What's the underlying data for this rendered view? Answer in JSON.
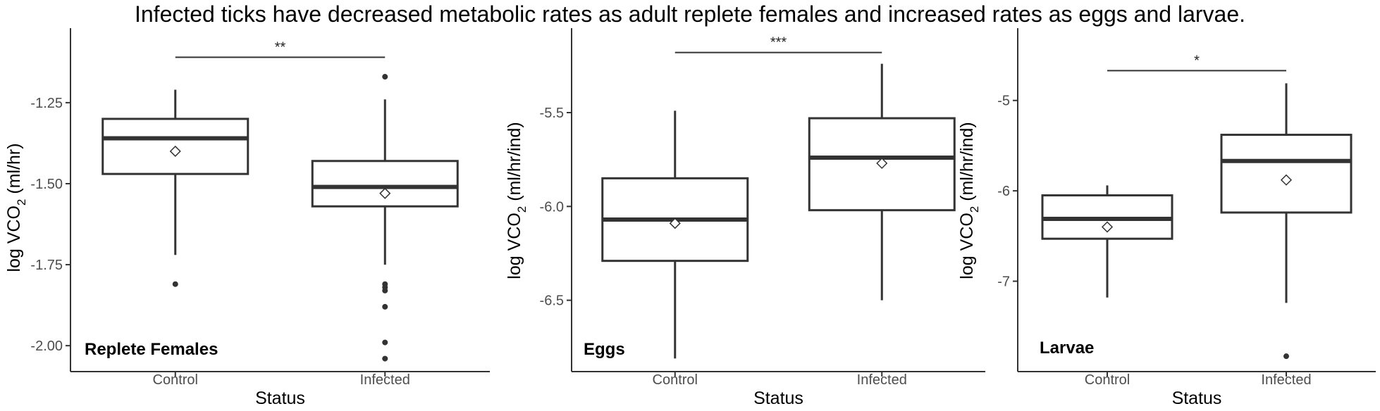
{
  "title": "Infected ticks have decreased metabolic rates as adult replete females and increased rates as eggs and larvae.",
  "chart_data": [
    {
      "type": "box",
      "panel_label": "Replete Females",
      "xlabel": "Status",
      "ylabel": "log VCO2 (ml/hr)",
      "ylabel_parts": [
        "log VCO",
        "2",
        " (ml/hr)"
      ],
      "categories": [
        "Control",
        "Infected"
      ],
      "ylim": [
        -2.08,
        -1.02
      ],
      "yticks": [
        -1.25,
        -1.5,
        -1.75,
        -2.0
      ],
      "ytick_labels": [
        "-1.25",
        "-1.50",
        "-1.75",
        "-2.00"
      ],
      "boxes": [
        {
          "category": "Control",
          "whisker_low": -1.72,
          "q1": -1.47,
          "median": -1.36,
          "q3": -1.3,
          "whisker_high": -1.21,
          "mean": -1.4,
          "outliers": [
            -1.81
          ]
        },
        {
          "category": "Infected",
          "whisker_low": -1.75,
          "q1": -1.57,
          "median": -1.51,
          "q3": -1.43,
          "whisker_high": -1.24,
          "mean": -1.53,
          "outliers": [
            -1.17,
            -1.81,
            -1.82,
            -1.83,
            -1.88,
            -1.99,
            -2.04
          ]
        }
      ],
      "significance": {
        "label": "**",
        "y": -1.11
      }
    },
    {
      "type": "box",
      "panel_label": "Eggs",
      "xlabel": "Status",
      "ylabel": "log VCO2 (ml/hr/ind)",
      "ylabel_parts": [
        "log VCO",
        "2",
        " (ml/hr/ind)"
      ],
      "categories": [
        "Control",
        "Infected"
      ],
      "ylim": [
        -6.88,
        -5.05
      ],
      "yticks": [
        -5.5,
        -6.0,
        -6.5
      ],
      "ytick_labels": [
        "-5.5",
        "-6.0",
        "-6.5"
      ],
      "boxes": [
        {
          "category": "Control",
          "whisker_low": -6.81,
          "q1": -6.29,
          "median": -6.07,
          "q3": -5.85,
          "whisker_high": -5.49,
          "mean": -6.09,
          "outliers": []
        },
        {
          "category": "Infected",
          "whisker_low": -6.5,
          "q1": -6.02,
          "median": -5.74,
          "q3": -5.53,
          "whisker_high": -5.24,
          "mean": -5.77,
          "outliers": []
        }
      ],
      "significance": {
        "label": "***",
        "y": -5.18
      }
    },
    {
      "type": "box",
      "panel_label": "Larvae",
      "xlabel": "Status",
      "ylabel": "log VCO2 (ml/hr/ind)",
      "ylabel_parts": [
        "log VCO",
        "2",
        " (ml/hr/ind)"
      ],
      "categories": [
        "Control",
        "Infected"
      ],
      "ylim": [
        -8.0,
        -4.2
      ],
      "yticks": [
        -5,
        -6,
        -7
      ],
      "ytick_labels": [
        "-5",
        "-6",
        "-7"
      ],
      "boxes": [
        {
          "category": "Control",
          "whisker_low": -7.18,
          "q1": -6.53,
          "median": -6.31,
          "q3": -6.05,
          "whisker_high": -5.94,
          "mean": -6.4,
          "outliers": []
        },
        {
          "category": "Infected",
          "whisker_low": -7.24,
          "q1": -6.24,
          "median": -5.67,
          "q3": -5.38,
          "whisker_high": -4.81,
          "mean": -5.88,
          "outliers": [
            -7.83
          ]
        }
      ],
      "significance": {
        "label": "*",
        "y": -4.67
      }
    }
  ]
}
